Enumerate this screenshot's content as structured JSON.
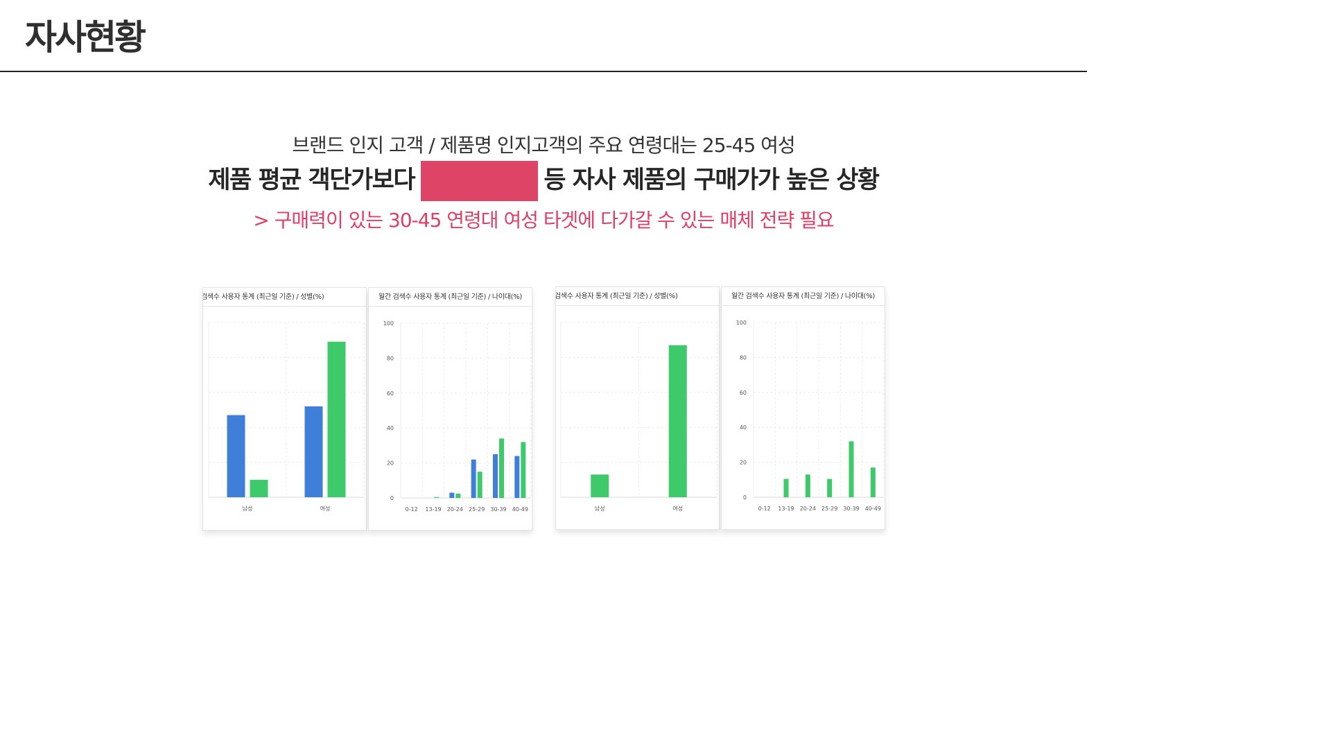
{
  "page": {
    "title": "자사현황"
  },
  "summary": {
    "line1": "브랜드 인지 고객 / 제품명 인지고객의 주요 연령대는 25-45 여성",
    "line2_before": "제품 평균 객단가보다",
    "line2_after": "등 자사 제품의 구매가가 높은 상황",
    "line3": "> 구매력이 있는 30-45 연령대 여성 타겟에 다가갈 수 있는 매체 전략 필요"
  },
  "colors": {
    "male": "#3f7fd9",
    "female": "#3ec96b",
    "accent": "#e23d64",
    "redaction": "#de4466"
  },
  "chart_data": [
    {
      "type": "bar",
      "title": "검색수 사용자 통계 (최근일 기준) / 성별(%)",
      "categories": [
        "남성",
        "여성"
      ],
      "series": [
        {
          "values": [
            47,
            52
          ]
        },
        {
          "values": [
            10,
            89
          ]
        }
      ],
      "ylim": [
        0,
        100
      ],
      "show_yticks": false,
      "grid": true
    },
    {
      "type": "bar",
      "title": "월간 검색수 사용자 통계 (최근일 기준) / 나이대(%)",
      "categories": [
        "0-12",
        "13-19",
        "20-24",
        "25-29",
        "30-39",
        "40-49"
      ],
      "series": [
        {
          "values": [
            0,
            0,
            3,
            22,
            25,
            24
          ]
        },
        {
          "values": [
            0,
            0.5,
            2.5,
            15,
            34,
            32
          ]
        }
      ],
      "yticks": [
        "0",
        "20",
        "40",
        "60",
        "80",
        "100"
      ],
      "ylim": [
        0,
        100
      ],
      "show_yticks": true,
      "grid": true
    },
    {
      "type": "bar",
      "title": "검색수 사용자 통계 (최근일 기준) / 성별(%)",
      "categories": [
        "남성",
        "여성"
      ],
      "series": [
        {
          "values": [
            13,
            87
          ]
        }
      ],
      "ylim": [
        0,
        100
      ],
      "show_yticks": false,
      "grid": true
    },
    {
      "type": "bar",
      "title": "월간 검색수 사용자 통계 (최근일 기준) / 나이대(%)",
      "categories": [
        "0-12",
        "13-19",
        "20-24",
        "25-29",
        "30-39",
        "40-49"
      ],
      "series": [
        {
          "values": [
            0,
            10.5,
            13,
            10.5,
            32,
            17
          ]
        }
      ],
      "yticks": [
        "0",
        "20",
        "40",
        "60",
        "80",
        "100"
      ],
      "ylim": [
        0,
        100
      ],
      "show_yticks": true,
      "grid": true
    }
  ]
}
